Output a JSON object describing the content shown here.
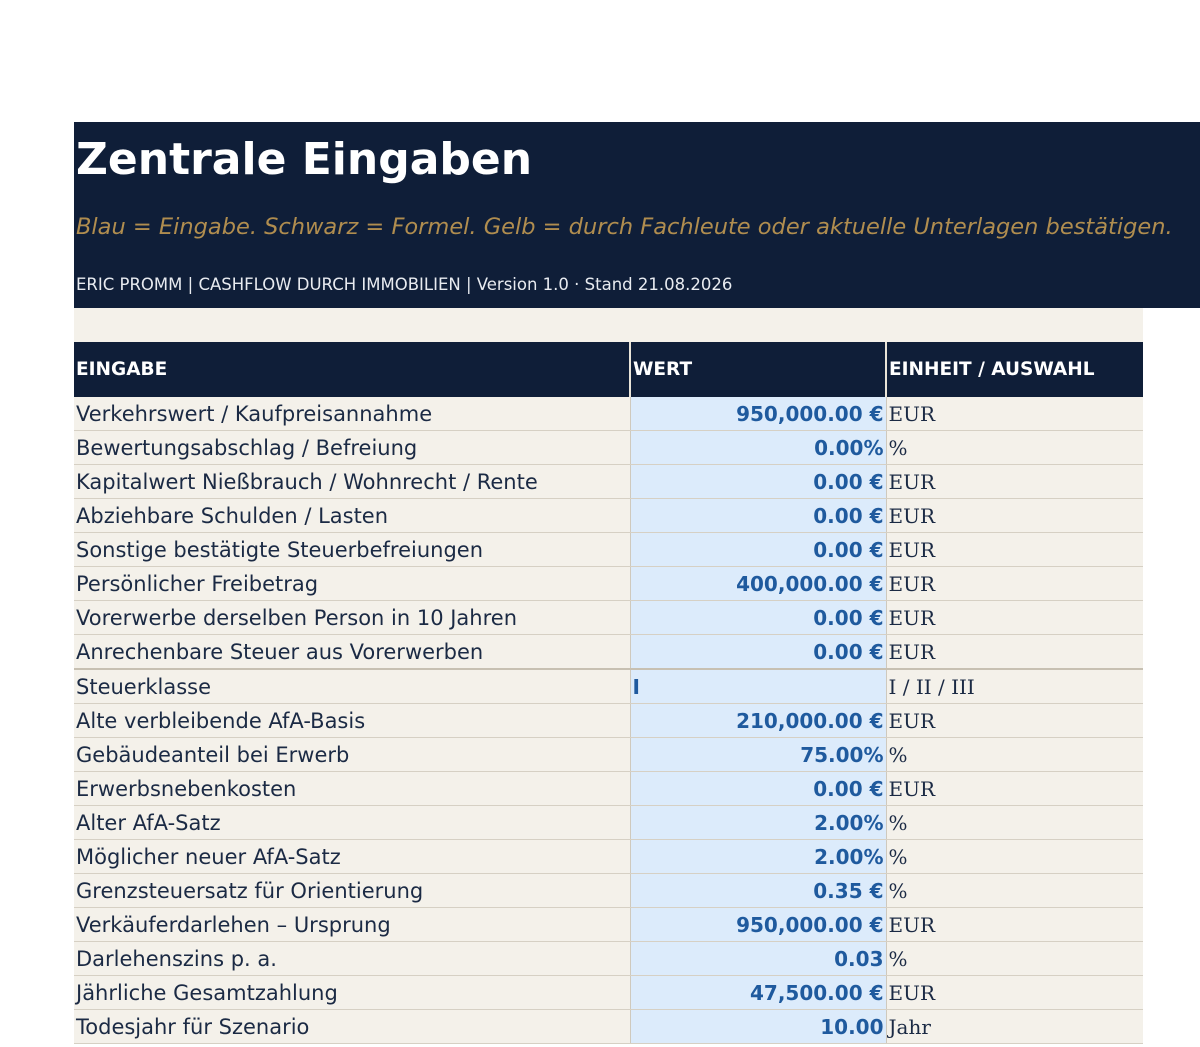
{
  "header": {
    "title": "Zentrale Eingaben",
    "subtitle": "Blau = Eingabe. Schwarz = Formel. Gelb = durch Fachleute oder aktuelle Unterlagen bestätigen.",
    "meta": "ERIC PROMM  |  CASHFLOW DURCH IMMOBILIEN  |  Version 1.0 · Stand 21.08.2026"
  },
  "table": {
    "headers": [
      "EINGABE",
      "WERT",
      "EINHEIT / AUSWAHL"
    ],
    "rows": [
      {
        "label": "Verkehrswert / Kaufpreisannahme",
        "value": "950,000.00 €",
        "unit": "EUR"
      },
      {
        "label": "Bewertungsabschlag / Befreiung",
        "value": "0.00%",
        "unit": "%"
      },
      {
        "label": "Kapitalwert Nießbrauch / Wohnrecht / Rente",
        "value": "0.00 €",
        "unit": "EUR"
      },
      {
        "label": "Abziehbare Schulden / Lasten",
        "value": "0.00 €",
        "unit": "EUR"
      },
      {
        "label": "Sonstige bestätigte Steuerbefreiungen",
        "value": "0.00 €",
        "unit": "EUR"
      },
      {
        "label": "Persönlicher Freibetrag",
        "value": "400,000.00 €",
        "unit": "EUR"
      },
      {
        "label": "Vorerwerbe derselben Person in 10 Jahren",
        "value": "0.00 €",
        "unit": "EUR"
      },
      {
        "label": "Anrechenbare Steuer aus Vorerwerben",
        "value": "0.00 €",
        "unit": "EUR"
      },
      {
        "label": "Steuerklasse",
        "value": "I",
        "unit": "I / II / III"
      },
      {
        "label": "Alte verbleibende AfA-Basis",
        "value": "210,000.00 €",
        "unit": "EUR"
      },
      {
        "label": "Gebäudeanteil bei Erwerb",
        "value": "75.00%",
        "unit": "%"
      },
      {
        "label": "Erwerbsnebenkosten",
        "value": "0.00 €",
        "unit": "EUR"
      },
      {
        "label": "Alter AfA-Satz",
        "value": "2.00%",
        "unit": "%"
      },
      {
        "label": "Möglicher neuer AfA-Satz",
        "value": "2.00%",
        "unit": "%"
      },
      {
        "label": "Grenzsteuersatz für Orientierung",
        "value": "0.35 €",
        "unit": "%"
      },
      {
        "label": "Verkäuferdarlehen – Ursprung",
        "value": "950,000.00 €",
        "unit": "EUR"
      },
      {
        "label": "Darlehenszins p. a.",
        "value": "0.03",
        "unit": "%"
      },
      {
        "label": "Jährliche Gesamtzahlung",
        "value": "47,500.00 €",
        "unit": "EUR"
      },
      {
        "label": "Todesjahr für Szenario",
        "value": "10.00",
        "unit": "Jahr"
      }
    ]
  },
  "colors": {
    "banner_bg": "#0f1e38",
    "subtitle_gold": "#b08d4f",
    "input_blue_bg": "#dcebfb",
    "input_blue_text": "#1f5a9e",
    "cream_bg": "#f4f1ea"
  }
}
